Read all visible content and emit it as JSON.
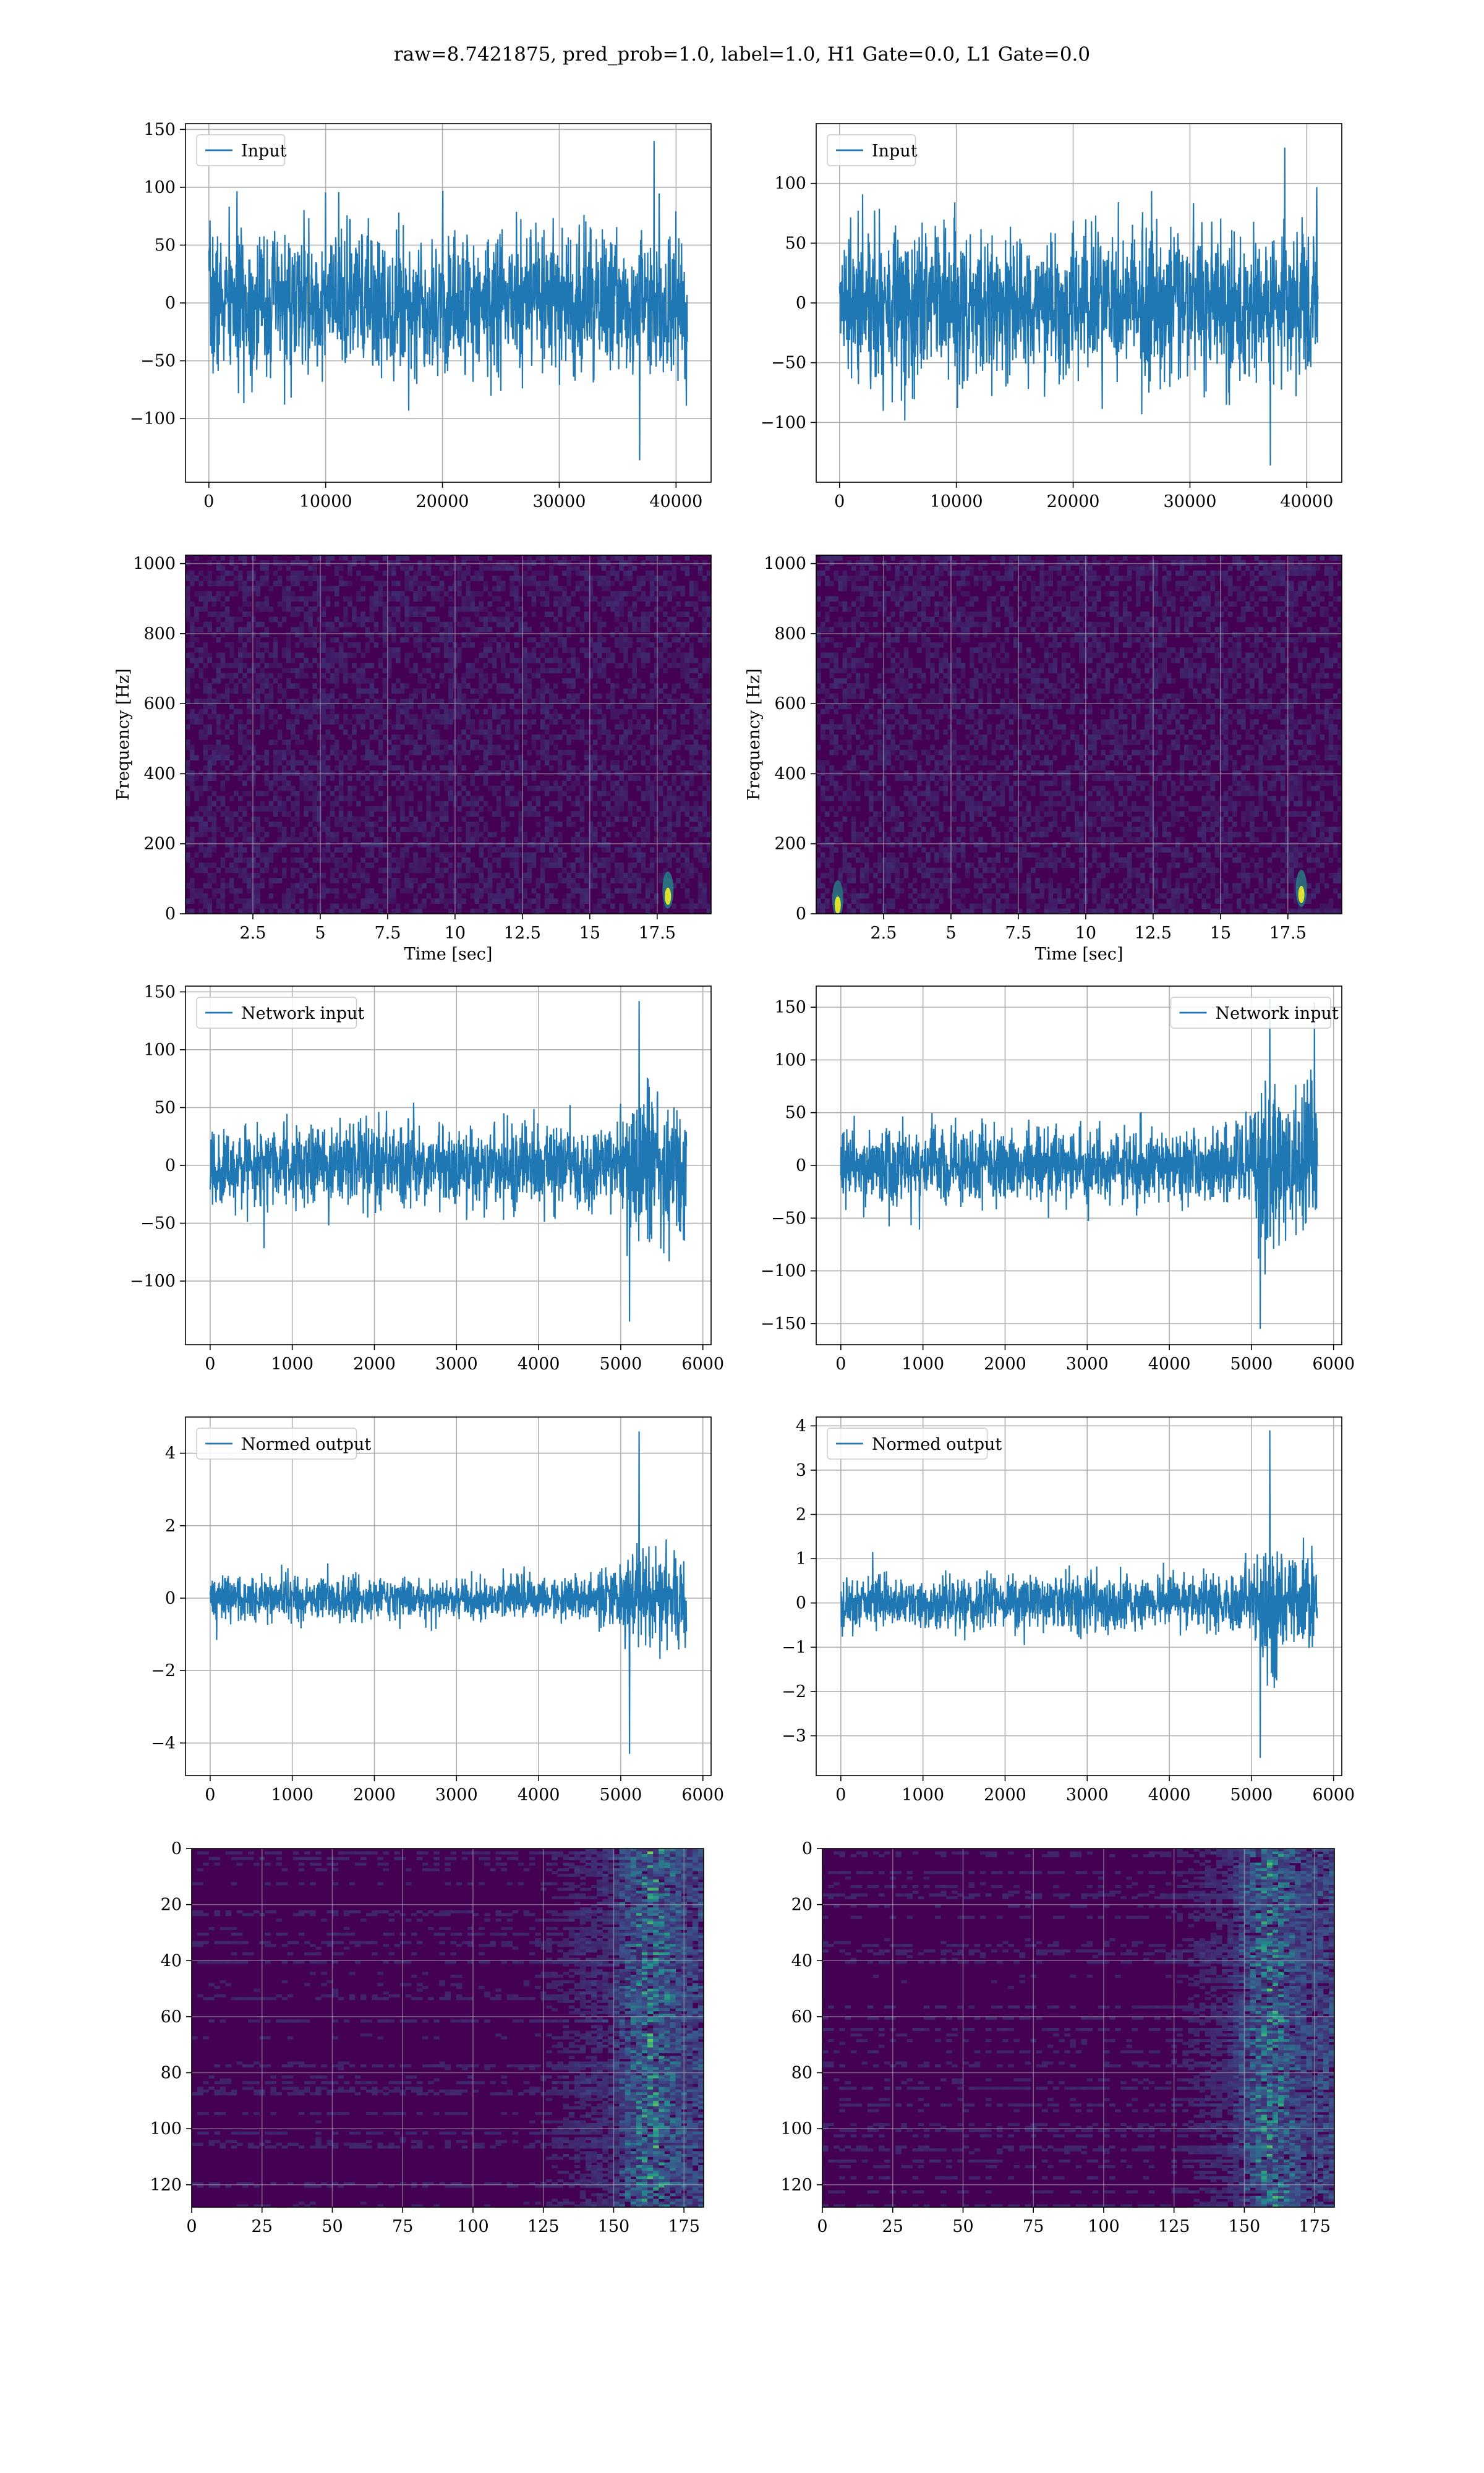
{
  "suptitle": "raw=8.7421875, pred_prob=1.0, label=1.0, H1 Gate=0.0, L1 Gate=0.0",
  "colors": {
    "line": "#1f77b4",
    "grid": "#b0b0b0",
    "viridis_bg": "#440154"
  },
  "chart_data": [
    {
      "id": "h1-input",
      "type": "line",
      "series": [
        {
          "name": "Input"
        }
      ],
      "legend": "upper left",
      "grid": true,
      "xlim": [
        -2000,
        43000
      ],
      "ylim": [
        -155,
        155
      ],
      "xticks": [
        0,
        10000,
        20000,
        30000,
        40000
      ],
      "yticks": [
        -100,
        -50,
        0,
        50,
        100,
        150
      ],
      "n": 40960,
      "noise": {
        "envelope": 62,
        "peak": 140,
        "trough": -136
      },
      "xlabel": "",
      "ylabel": ""
    },
    {
      "id": "l1-input",
      "type": "line",
      "series": [
        {
          "name": "Input"
        }
      ],
      "legend": "upper left",
      "grid": true,
      "xlim": [
        -2000,
        43000
      ],
      "ylim": [
        -150,
        150
      ],
      "xticks": [
        0,
        10000,
        20000,
        30000,
        40000
      ],
      "yticks": [
        -100,
        -50,
        0,
        50,
        100
      ],
      "n": 40960,
      "noise": {
        "envelope": 62,
        "peak": 130,
        "trough": -136
      },
      "xlabel": "",
      "ylabel": ""
    },
    {
      "id": "h1-spectrogram",
      "type": "heatmap",
      "grid": true,
      "xlim": [
        0,
        19.5
      ],
      "ylim": [
        0,
        1024
      ],
      "xticks": [
        2.5,
        5.0,
        7.5,
        10.0,
        12.5,
        15.0,
        17.5
      ],
      "yticks": [
        0,
        200,
        400,
        600,
        800,
        1000
      ],
      "xlabel": "Time [sec]",
      "ylabel": "Frequency [Hz]",
      "hotspots": [
        {
          "t": 17.9,
          "f": 50
        }
      ]
    },
    {
      "id": "l1-spectrogram",
      "type": "heatmap",
      "grid": true,
      "xlim": [
        0,
        19.5
      ],
      "ylim": [
        0,
        1024
      ],
      "xticks": [
        2.5,
        5.0,
        7.5,
        10.0,
        12.5,
        15.0,
        17.5
      ],
      "yticks": [
        0,
        200,
        400,
        600,
        800,
        1000
      ],
      "xlabel": "Time [sec]",
      "ylabel": "Frequency [Hz]",
      "hotspots": [
        {
          "t": 18.0,
          "f": 55
        },
        {
          "t": 0.8,
          "f": 25
        }
      ]
    },
    {
      "id": "h1-network-input",
      "type": "line",
      "series": [
        {
          "name": "Network input"
        }
      ],
      "legend": "upper left",
      "grid": true,
      "xlim": [
        -300,
        6100
      ],
      "ylim": [
        -155,
        155
      ],
      "xticks": [
        0,
        1000,
        2000,
        3000,
        4000,
        5000,
        6000
      ],
      "yticks": [
        -100,
        -50,
        0,
        50,
        100,
        150
      ],
      "n": 5800,
      "noise": {
        "envelope": 35,
        "peak": 142,
        "trough": -135,
        "burst_start": 4800
      },
      "xlabel": "",
      "ylabel": ""
    },
    {
      "id": "l1-network-input",
      "type": "line",
      "series": [
        {
          "name": "Network input"
        }
      ],
      "legend": "upper right",
      "grid": true,
      "xlim": [
        -300,
        6100
      ],
      "ylim": [
        -170,
        170
      ],
      "xticks": [
        0,
        1000,
        2000,
        3000,
        4000,
        5000,
        6000
      ],
      "yticks": [
        -150,
        -100,
        -50,
        0,
        50,
        100,
        150
      ],
      "n": 5800,
      "noise": {
        "envelope": 35,
        "peak": 158,
        "trough": -155,
        "burst_start": 4800
      },
      "xlabel": "",
      "ylabel": ""
    },
    {
      "id": "h1-normed-output",
      "type": "line",
      "series": [
        {
          "name": "Normed output"
        }
      ],
      "legend": "upper left",
      "grid": true,
      "xlim": [
        -300,
        6100
      ],
      "ylim": [
        -4.9,
        5.0
      ],
      "xticks": [
        0,
        1000,
        2000,
        3000,
        4000,
        5000,
        6000
      ],
      "yticks": [
        -4,
        -2,
        0,
        2,
        4
      ],
      "n": 5800,
      "noise": {
        "envelope": 0.6,
        "peak": 4.6,
        "trough": -4.3,
        "burst_start": 4700
      },
      "xlabel": "",
      "ylabel": ""
    },
    {
      "id": "l1-normed-output",
      "type": "line",
      "series": [
        {
          "name": "Normed output"
        }
      ],
      "legend": "upper left",
      "grid": true,
      "xlim": [
        -300,
        6100
      ],
      "ylim": [
        -3.9,
        4.2
      ],
      "xticks": [
        0,
        1000,
        2000,
        3000,
        4000,
        5000,
        6000
      ],
      "yticks": [
        -3,
        -2,
        -1,
        0,
        1,
        2,
        3,
        4
      ],
      "n": 5800,
      "noise": {
        "envelope": 0.6,
        "peak": 3.9,
        "trough": -3.5,
        "burst_start": 4700
      },
      "xlabel": "",
      "ylabel": ""
    },
    {
      "id": "h1-feature-map",
      "type": "heatmap",
      "grid": true,
      "origin": "upper",
      "xlim": [
        0,
        182
      ],
      "ylim": [
        128,
        0
      ],
      "xticks": [
        0,
        25,
        50,
        75,
        100,
        125,
        150,
        175
      ],
      "yticks": [
        0,
        20,
        40,
        60,
        80,
        100,
        120
      ],
      "xlabel": "",
      "ylabel": "",
      "active_from": 120,
      "peak_col": 162
    },
    {
      "id": "l1-feature-map",
      "type": "heatmap",
      "grid": true,
      "origin": "upper",
      "xlim": [
        0,
        182
      ],
      "ylim": [
        128,
        0
      ],
      "xticks": [
        0,
        25,
        50,
        75,
        100,
        125,
        150,
        175
      ],
      "yticks": [
        0,
        20,
        40,
        60,
        80,
        100,
        120
      ],
      "xlabel": "",
      "ylabel": "",
      "active_from": 120,
      "peak_col": 158
    }
  ]
}
